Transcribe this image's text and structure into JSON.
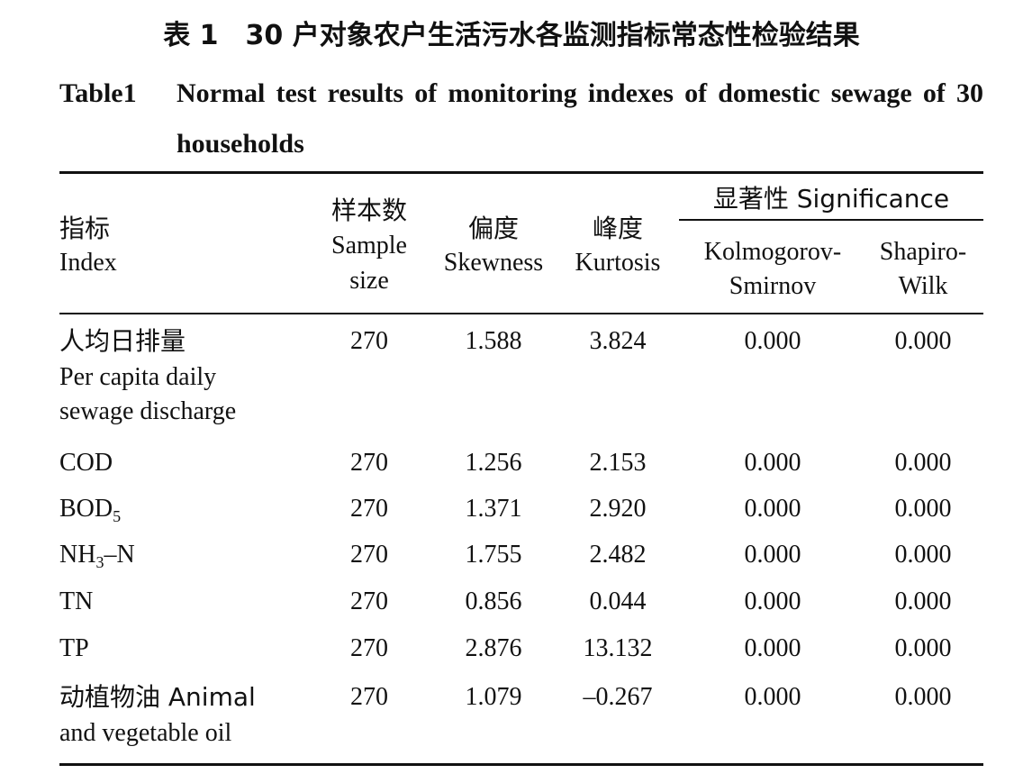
{
  "title": {
    "cn": "表 1　30 户对象农户生活污水各监测指标常态性检验结果",
    "en_label": "Table1",
    "en_text": "Normal test results of monitoring indexes of domestic sewage of 30 households"
  },
  "headers": {
    "index_cn": "指标",
    "index_en": "Index",
    "sample_cn": "样本数",
    "sample_en1": "Sample",
    "sample_en2": "size",
    "skew_cn": "偏度",
    "skew_en": "Skewness",
    "kurt_cn": "峰度",
    "kurt_en": "Kurtosis",
    "sig": "显著性 Significance",
    "ks1": "Kolmogorov-",
    "ks2": "Smirnov",
    "sw1": "Shapiro-",
    "sw2": "Wilk"
  },
  "rows": [
    {
      "name_lines": [
        "人均日排量",
        "Per capita daily",
        "sewage discharge"
      ],
      "n": "270",
      "skew": "1.588",
      "kurt": "3.824",
      "ks": "0.000",
      "sw": "0.000"
    },
    {
      "name": "COD",
      "n": "270",
      "skew": "1.256",
      "kurt": "2.153",
      "ks": "0.000",
      "sw": "0.000"
    },
    {
      "name": "BOD",
      "sub": "5",
      "n": "270",
      "skew": "1.371",
      "kurt": "2.920",
      "ks": "0.000",
      "sw": "0.000"
    },
    {
      "name": "NH",
      "sub": "3",
      "name_tail": "–N",
      "n": "270",
      "skew": "1.755",
      "kurt": "2.482",
      "ks": "0.000",
      "sw": "0.000"
    },
    {
      "name": "TN",
      "n": "270",
      "skew": "0.856",
      "kurt": "0.044",
      "ks": "0.000",
      "sw": "0.000"
    },
    {
      "name": "TP",
      "n": "270",
      "skew": "2.876",
      "kurt": "13.132",
      "ks": "0.000",
      "sw": "0.000"
    },
    {
      "name_lines": [
        "动植物油 Animal",
        "and vegetable oil"
      ],
      "n": "270",
      "skew": "1.079",
      "kurt": "–0.267",
      "ks": "0.000",
      "sw": "0.000"
    }
  ]
}
